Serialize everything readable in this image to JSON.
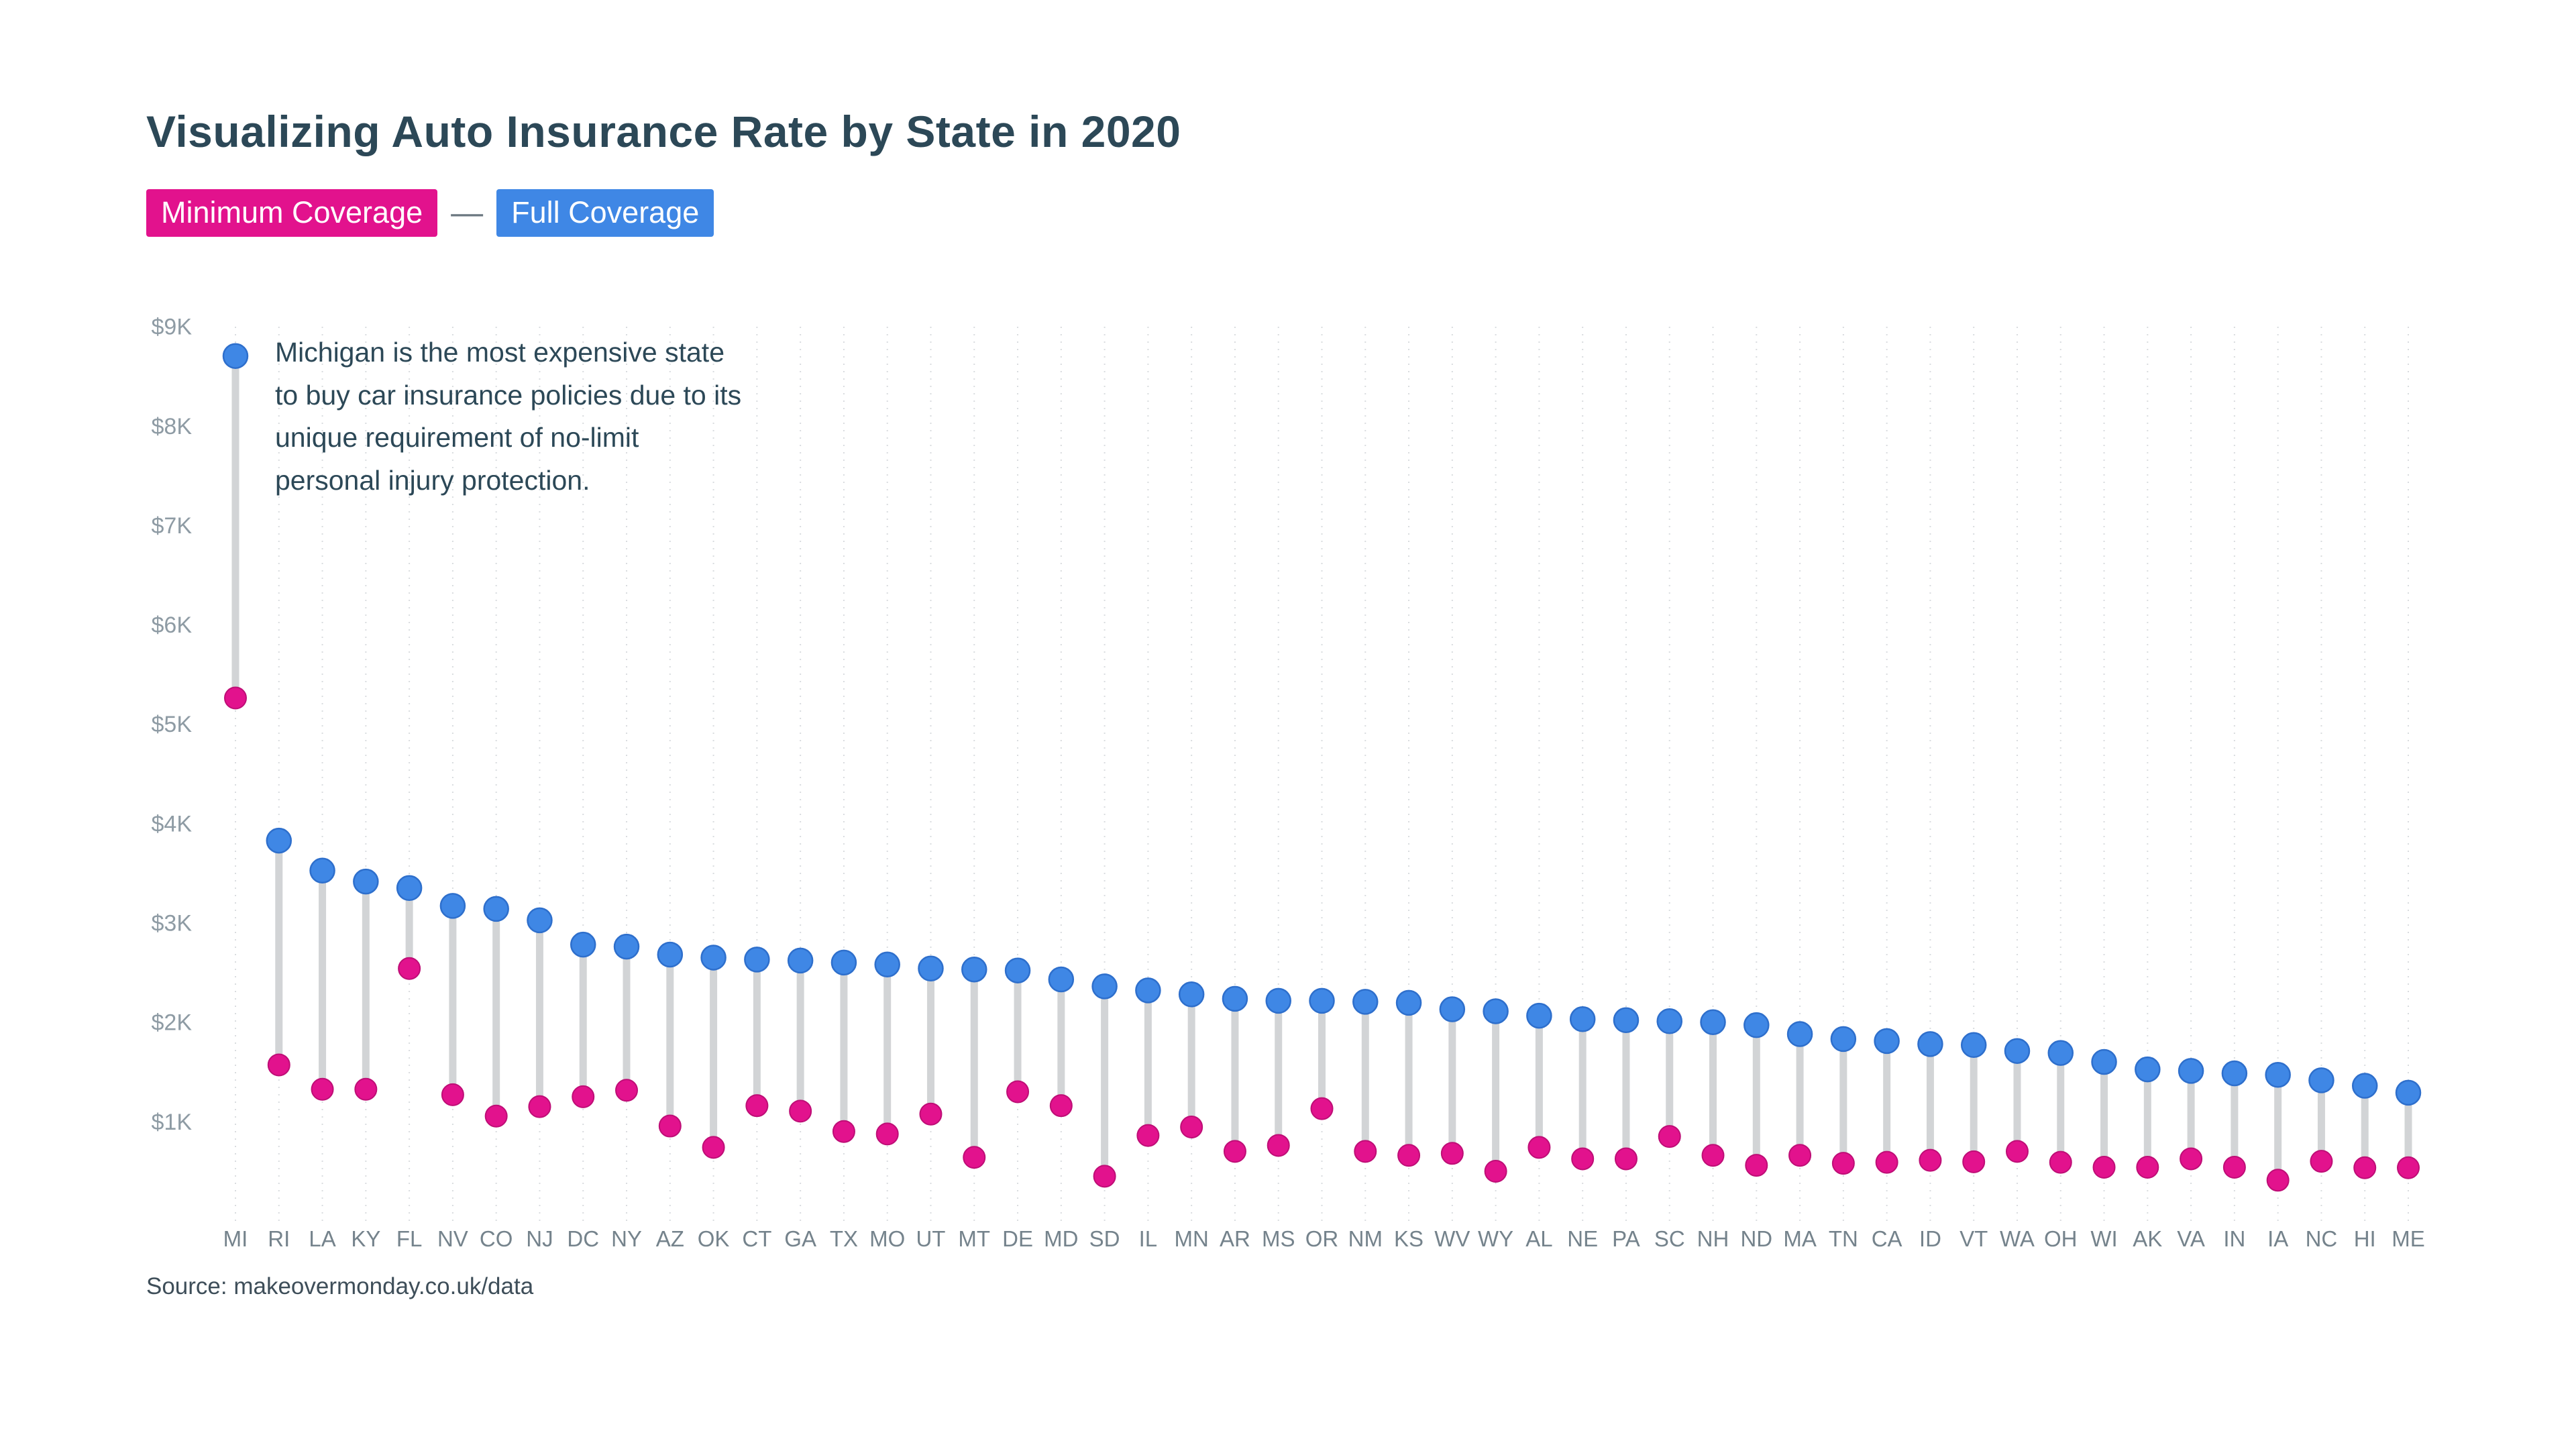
{
  "title": "Visualizing Auto Insurance Rate by State in 2020",
  "legend": {
    "minimum_label": "Minimum Coverage",
    "separator": "—",
    "full_label": "Full Coverage"
  },
  "annotation": "Michigan is the most expensive state to buy car insurance policies due to its unique requirement of no-limit personal injury protection.",
  "source": "Source: makeovermonday.co.uk/data",
  "colors": {
    "minimum": "#E2128D",
    "minimum_stroke": "#BE0E76",
    "full": "#3F87E5",
    "full_stroke": "#2E6FCC",
    "connector": "#D2D4D6",
    "gridline": "#D9DCDF",
    "axis_text": "#8E9BA4",
    "state_text": "#75838C"
  },
  "chart_data": {
    "type": "dumbbell",
    "title": "Visualizing Auto Insurance Rate by State in 2020",
    "xlabel": "State",
    "ylabel": "Annual premium (USD)",
    "ylim": [
      0,
      9000
    ],
    "grid": "vertical-dotted",
    "legend_position": "top-left",
    "y_ticks": [
      {
        "value": 9000,
        "label": "$9K"
      },
      {
        "value": 8000,
        "label": "$8K"
      },
      {
        "value": 7000,
        "label": "$7K"
      },
      {
        "value": 6000,
        "label": "$6K"
      },
      {
        "value": 5000,
        "label": "$5K"
      },
      {
        "value": 4000,
        "label": "$4K"
      },
      {
        "value": 3000,
        "label": "$3K"
      },
      {
        "value": 2000,
        "label": "$2K"
      },
      {
        "value": 1000,
        "label": "$1K"
      }
    ],
    "categories": [
      "MI",
      "RI",
      "LA",
      "KY",
      "FL",
      "NV",
      "CO",
      "NJ",
      "DC",
      "NY",
      "AZ",
      "OK",
      "CT",
      "GA",
      "TX",
      "MO",
      "UT",
      "MT",
      "DE",
      "MD",
      "SD",
      "IL",
      "MN",
      "AR",
      "MS",
      "OR",
      "NM",
      "KS",
      "WV",
      "WY",
      "AL",
      "NE",
      "PA",
      "SC",
      "NH",
      "ND",
      "MA",
      "TN",
      "CA",
      "ID",
      "VT",
      "WA",
      "OH",
      "WI",
      "AK",
      "VA",
      "IN",
      "IA",
      "NC",
      "HI",
      "ME"
    ],
    "series": [
      {
        "name": "Full Coverage",
        "values": [
          8723,
          3847,
          3545,
          3435,
          3370,
          3190,
          3160,
          3045,
          2800,
          2780,
          2700,
          2670,
          2650,
          2640,
          2620,
          2600,
          2560,
          2550,
          2540,
          2450,
          2380,
          2340,
          2300,
          2255,
          2235,
          2235,
          2225,
          2215,
          2150,
          2130,
          2085,
          2050,
          2040,
          2030,
          2020,
          1990,
          1900,
          1850,
          1830,
          1800,
          1790,
          1730,
          1710,
          1620,
          1545,
          1530,
          1505,
          1490,
          1435,
          1380,
          1310
        ]
      },
      {
        "name": "Minimum Coverage",
        "values": [
          5282,
          1590,
          1345,
          1345,
          2560,
          1290,
          1075,
          1170,
          1270,
          1335,
          975,
          760,
          1180,
          1125,
          920,
          895,
          1095,
          660,
          1320,
          1180,
          470,
          880,
          965,
          720,
          780,
          1150,
          720,
          680,
          700,
          520,
          760,
          645,
          645,
          870,
          680,
          580,
          680,
          600,
          610,
          630,
          615,
          720,
          610,
          560,
          560,
          645,
          560,
          430,
          620,
          555,
          555
        ]
      }
    ]
  }
}
